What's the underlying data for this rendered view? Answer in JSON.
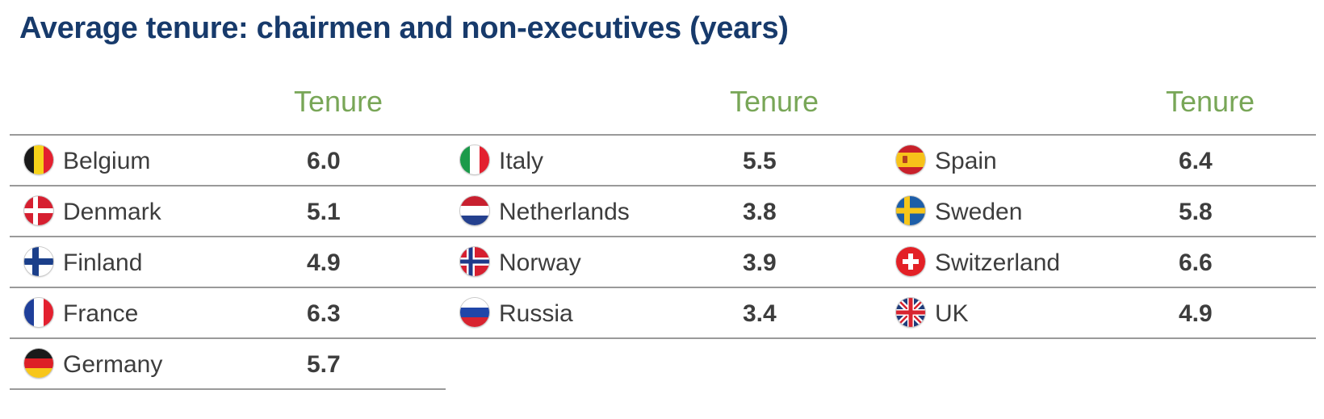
{
  "title": "Average tenure: chairmen and non-executives (years)",
  "columns": [
    {
      "header": "Tenure",
      "rows": [
        {
          "country": "Belgium",
          "value": "6.0",
          "flag": "belgium-flag-icon"
        },
        {
          "country": "Denmark",
          "value": "5.1",
          "flag": "denmark-flag-icon"
        },
        {
          "country": "Finland",
          "value": "4.9",
          "flag": "finland-flag-icon"
        },
        {
          "country": "France",
          "value": "6.3",
          "flag": "france-flag-icon"
        },
        {
          "country": "Germany",
          "value": "5.7",
          "flag": "germany-flag-icon"
        }
      ]
    },
    {
      "header": "Tenure",
      "rows": [
        {
          "country": "Italy",
          "value": "5.5",
          "flag": "italy-flag-icon"
        },
        {
          "country": "Netherlands",
          "value": "3.8",
          "flag": "netherlands-flag-icon"
        },
        {
          "country": "Norway",
          "value": "3.9",
          "flag": "norway-flag-icon"
        },
        {
          "country": "Russia",
          "value": "3.4",
          "flag": "russia-flag-icon"
        }
      ]
    },
    {
      "header": "Tenure",
      "rows": [
        {
          "country": "Spain",
          "value": "6.4",
          "flag": "spain-flag-icon"
        },
        {
          "country": "Sweden",
          "value": "5.8",
          "flag": "sweden-flag-icon"
        },
        {
          "country": "Switzerland",
          "value": "6.6",
          "flag": "switzerland-flag-icon"
        },
        {
          "country": "UK",
          "value": "4.9",
          "flag": "uk-flag-icon"
        }
      ]
    }
  ],
  "colors": {
    "title": "#173a6b",
    "header": "#78a657",
    "text": "#3d3d3d",
    "rule": "#9a9a9a"
  }
}
